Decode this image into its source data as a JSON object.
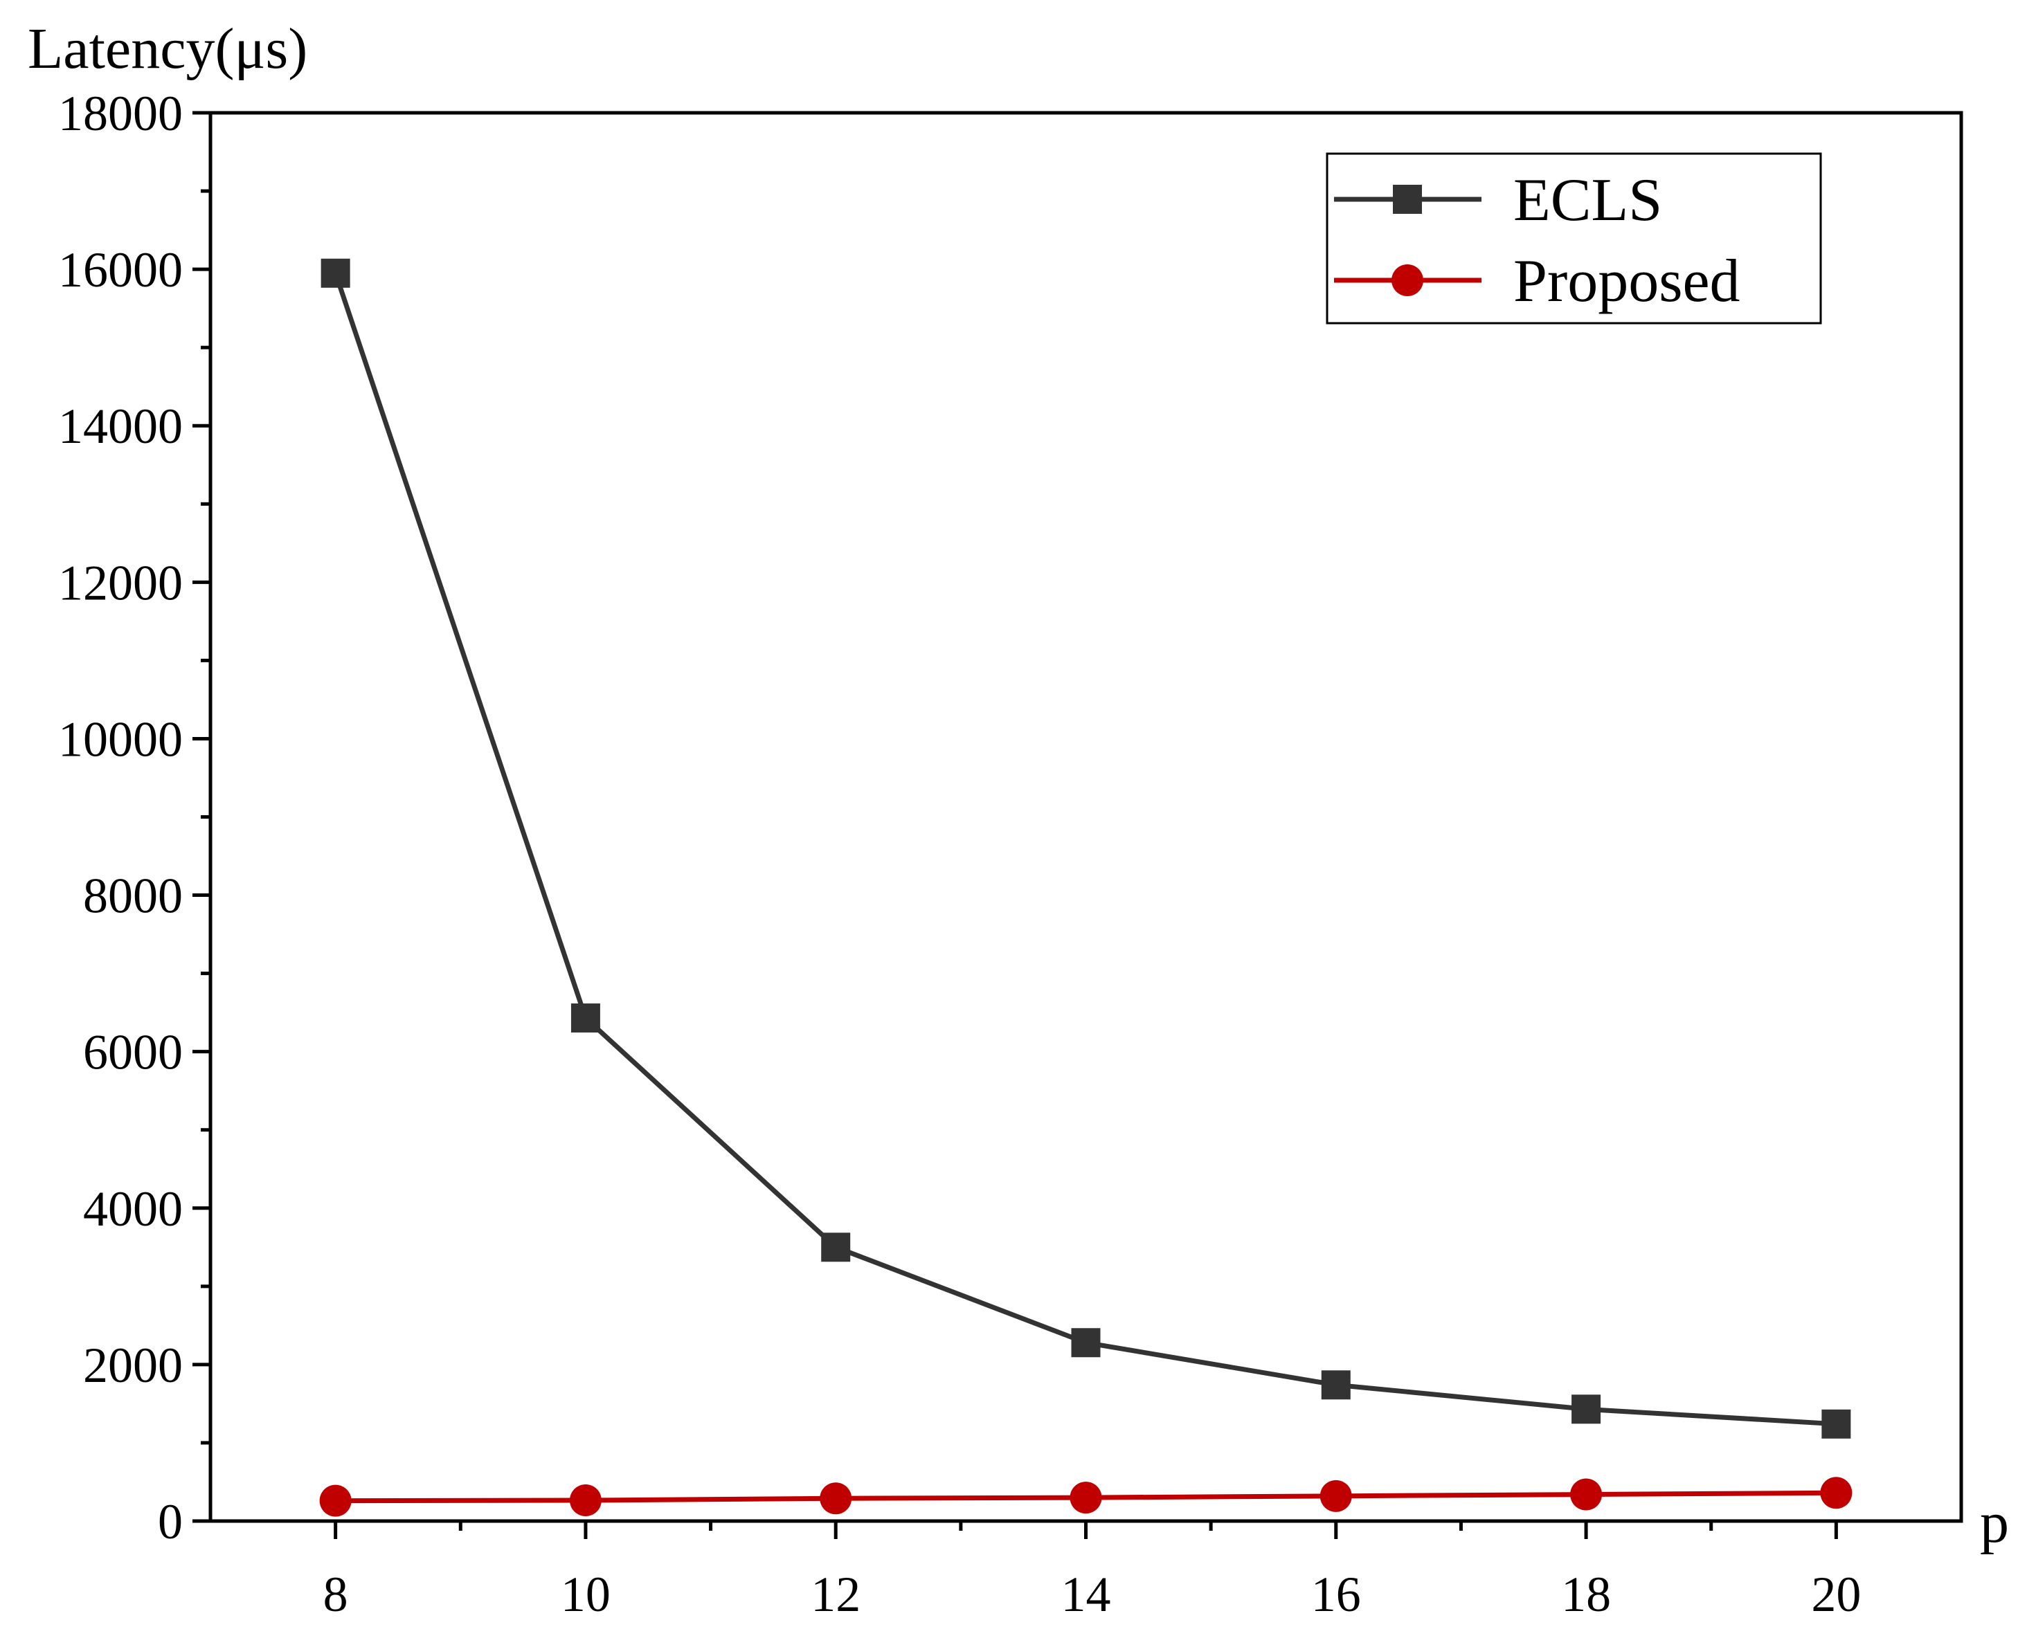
{
  "chart_data": {
    "type": "line",
    "xlabel": "p",
    "ylabel": "Latency(μs)",
    "xlim": [
      7,
      21
    ],
    "ylim": [
      0,
      18000
    ],
    "xticks": [
      8,
      10,
      12,
      14,
      16,
      18,
      20
    ],
    "xticks_minor": [
      9,
      11,
      13,
      15,
      17,
      19
    ],
    "yticks": [
      0,
      2000,
      4000,
      6000,
      8000,
      10000,
      12000,
      14000,
      16000,
      18000
    ],
    "yticks_minor": [
      1000,
      3000,
      5000,
      7000,
      9000,
      11000,
      13000,
      15000,
      17000
    ],
    "grid": false,
    "legend_position": "top-right",
    "x": [
      8,
      10,
      12,
      14,
      16,
      18,
      20
    ],
    "series": [
      {
        "name": "ECLS",
        "color": "#333333",
        "marker": "square",
        "values": [
          15950,
          6430,
          3500,
          2280,
          1740,
          1430,
          1240
        ]
      },
      {
        "name": "Proposed",
        "color": "#c00000",
        "marker": "circle",
        "values": [
          260,
          265,
          290,
          300,
          320,
          340,
          360
        ]
      }
    ]
  }
}
